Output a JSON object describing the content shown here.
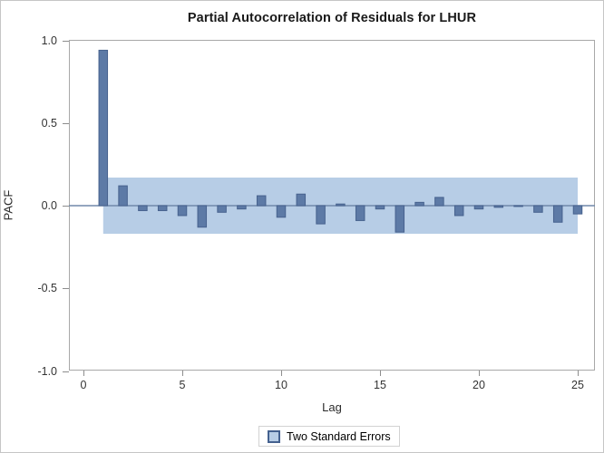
{
  "title": "Partial Autocorrelation of Residuals for LHUR",
  "y_axis_label": "PACF",
  "x_axis_label": "Lag",
  "legend": {
    "label": "Two Standard Errors"
  },
  "colors": {
    "bar_fill": "#5d7aa6",
    "bar_stroke": "#47628e",
    "band_fill": "#b7cde6",
    "zero_line": "#7189aa",
    "axis_frame": "#a8a8a8",
    "tick": "#8d8d8d",
    "title_text": "#1a1a1a"
  },
  "chart_data": {
    "type": "bar",
    "title": "Partial Autocorrelation of Residuals for LHUR",
    "xlabel": "Lag",
    "ylabel": "PACF",
    "ylim": [
      -1.0,
      1.0
    ],
    "xlim": [
      -0.8,
      25.8
    ],
    "grid": false,
    "legend_position": "bottom-center",
    "ytick_labels": [
      "1.0",
      "0.5",
      "0.0",
      "-0.5",
      "-1.0"
    ],
    "ytick_values": [
      1.0,
      0.5,
      0.0,
      -0.5,
      -1.0
    ],
    "xtick_labels": [
      "0",
      "5",
      "10",
      "15",
      "20",
      "25"
    ],
    "xtick_values": [
      0,
      5,
      10,
      15,
      20,
      25
    ],
    "x": [
      1,
      2,
      3,
      4,
      5,
      6,
      7,
      8,
      9,
      10,
      11,
      12,
      13,
      14,
      15,
      16,
      17,
      18,
      19,
      20,
      21,
      22,
      23,
      24,
      25
    ],
    "values": [
      0.94,
      0.12,
      -0.03,
      -0.03,
      -0.06,
      -0.13,
      -0.04,
      -0.02,
      0.06,
      -0.07,
      0.07,
      -0.11,
      0.01,
      -0.09,
      -0.02,
      -0.16,
      0.02,
      0.05,
      -0.06,
      -0.02,
      -0.01,
      -0.005,
      -0.04,
      -0.1,
      -0.05
    ],
    "band": {
      "label": "Two Standard Errors",
      "low": -0.17,
      "high": 0.17,
      "x_start": 1,
      "x_end": 25
    }
  }
}
